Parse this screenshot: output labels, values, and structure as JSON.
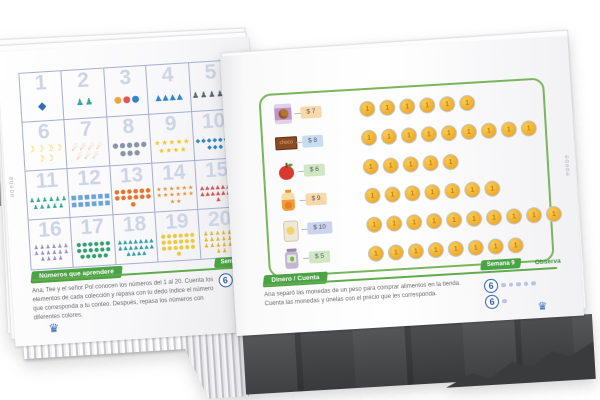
{
  "brand": {
    "crown_glyph": "♛",
    "crown_icon": "edebe-crown-icon"
  },
  "colors": {
    "accent_green": "#4aa344",
    "box_border_green": "#7ab55c",
    "rule_green": "#61ab4e",
    "grid_line": "#a3aed2",
    "pale_number": "#ccd4e6",
    "score_blue": "#2f5fae",
    "coin_gold": "#eda92a",
    "coin_ring": "#c2c6ce"
  },
  "left_page": {
    "spine_text": "edebé",
    "grid": {
      "cells": [
        {
          "number": "1",
          "icon": "telescope",
          "glyph": "◆",
          "color": "#2f6fb8",
          "count": 1,
          "size": 11
        },
        {
          "number": "2",
          "icon": "astronaut",
          "glyph": "♟",
          "color": "#3aa6a0",
          "count": 2,
          "size": 9
        },
        {
          "number": "3",
          "icon": "planet",
          "glyph": "●",
          "color": "#f2a33c",
          "count": 3,
          "size": 9,
          "colors": [
            "#f2a33c",
            "#e05555",
            "#2f86c9"
          ]
        },
        {
          "number": "4",
          "icon": "rocket",
          "glyph": "▲",
          "color": "#2f86c9",
          "count": 4,
          "size": 8
        },
        {
          "number": "5",
          "icon": "astronaut-gray",
          "glyph": "♟",
          "color": "#5c6770",
          "count": 5,
          "size": 8
        },
        {
          "number": "6",
          "icon": "moon-crescent",
          "glyph": "☽",
          "color": "#f2d13c",
          "count": 6,
          "size": 9
        },
        {
          "number": "7",
          "icon": "comet",
          "glyph": "☄",
          "color": "#e07820",
          "count": 7,
          "size": 8
        },
        {
          "number": "8",
          "icon": "asteroid",
          "glyph": "●",
          "color": "#8a93a8",
          "count": 8,
          "size": 7
        },
        {
          "number": "9",
          "icon": "star",
          "glyph": "★",
          "color": "#f5c518",
          "count": 9,
          "size": 7
        },
        {
          "number": "10",
          "icon": "satellite",
          "glyph": "◆",
          "color": "#2f86c9",
          "count": 10,
          "size": 6
        },
        {
          "number": "11",
          "icon": "alien-teal",
          "glyph": "♟",
          "color": "#2fa893",
          "count": 11,
          "size": 6
        },
        {
          "number": "12",
          "icon": "space-station",
          "glyph": "■",
          "color": "#6aa3d8",
          "count": 12,
          "size": 6
        },
        {
          "number": "13",
          "icon": "ufo",
          "glyph": "●",
          "color": "#e8722a",
          "count": 13,
          "size": 6
        },
        {
          "number": "14",
          "icon": "sun",
          "glyph": "★",
          "color": "#ef8f2a",
          "count": 14,
          "size": 6
        },
        {
          "number": "15",
          "icon": "rocket-red",
          "glyph": "▲",
          "color": "#d9534f",
          "count": 15,
          "size": 5.5
        },
        {
          "number": "16",
          "icon": "alien-purple",
          "glyph": "♟",
          "color": "#9b8ec4",
          "count": 16,
          "size": 5.5
        },
        {
          "number": "17",
          "icon": "planet-teal",
          "glyph": "●",
          "color": "#2fa06e",
          "count": 17,
          "size": 5.5
        },
        {
          "number": "18",
          "icon": "rocket-teal",
          "glyph": "▲",
          "color": "#2fa0a8",
          "count": 18,
          "size": 5.5
        },
        {
          "number": "19",
          "icon": "moon-yellow",
          "glyph": "●",
          "color": "#edc93f",
          "count": 19,
          "size": 5.5
        },
        {
          "number": "20",
          "icon": "astronaut-gold",
          "glyph": "♟",
          "color": "#e3b32c",
          "count": 20,
          "size": 5.5
        }
      ]
    },
    "footer": {
      "topic_badge": "Números que aprenderé",
      "week_badge": "Semana 9",
      "instructions": "Ana, Tee y el señor Pol conocen los números del 1 al 20. Cuenta los elementos de cada colección y repasa con tu dedo índice el número que corresponda a tu conteo. Después, repasa los números con diferentes colores.",
      "scores": [
        {
          "value": "6",
          "dots": 1
        }
      ]
    }
  },
  "right_page": {
    "spine_text": "edebé",
    "activity": {
      "coin_value": "1",
      "coin_rows": [
        6,
        9,
        5,
        7,
        10,
        8
      ],
      "items": [
        {
          "icon": "cookies",
          "label": "",
          "price": "$ 7",
          "tag_color": "#f8d8ab"
        },
        {
          "icon": "choco",
          "label": "choco",
          "price": "$ 8",
          "tag_color": "#c8ddf1"
        },
        {
          "icon": "apple",
          "label": "",
          "price": "$ 6",
          "tag_color": "#cfe8c3"
        },
        {
          "icon": "juice",
          "label": "",
          "price": "$ 9",
          "tag_color": "#f8d8ab"
        },
        {
          "icon": "chips",
          "label": "",
          "price": "$ 10",
          "tag_color": "#ccd3ee"
        },
        {
          "icon": "jar",
          "label": "",
          "price": "$ 5",
          "tag_color": "#cfe8c3"
        }
      ]
    },
    "footer": {
      "topic_badge": "Dinero / Cuenta",
      "week_badge": "Semana 9",
      "observa_label": "Observa",
      "instructions": "Ana separó las monedas de un peso para comprar alimentos en la tienda. Cuenta las monedas y únelas con el precio que les corresponda.",
      "scores": [
        {
          "value": "6",
          "dots": 5
        },
        {
          "value": "6",
          "dots": 1
        }
      ]
    }
  }
}
